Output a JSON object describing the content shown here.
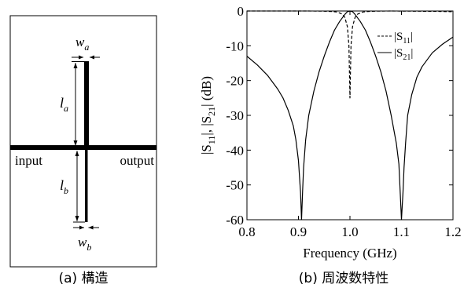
{
  "panel_a": {
    "caption": "(a) 構造",
    "label_wa_main": "w",
    "label_wa_sub": "a",
    "label_la_main": "l",
    "label_la_sub": "a",
    "label_lb_main": "l",
    "label_lb_sub": "b",
    "label_wb_main": "w",
    "label_wb_sub": "b",
    "label_input": "input",
    "label_output": "output"
  },
  "panel_b": {
    "caption": "(b) 周波数特性"
  },
  "chart_data": {
    "type": "line",
    "xlabel": "Frequency (GHz)",
    "ylabel_parts": [
      "|S",
      "11",
      "|, |S",
      "21",
      "| (dB)"
    ],
    "xlim": [
      0.8,
      1.2
    ],
    "ylim": [
      -60,
      0
    ],
    "x_ticks": [
      "0.8",
      "0.9",
      "1.0",
      "1.1",
      "1.2"
    ],
    "y_ticks": [
      "0",
      "-10",
      "-20",
      "-30",
      "-40",
      "-50",
      "-60"
    ],
    "legend_position": "top-right",
    "series": [
      {
        "name_main": "|S",
        "name_sub": "11",
        "name_end": "|",
        "style": "dashed",
        "x": [
          0.8,
          0.84,
          0.88,
          0.92,
          0.95,
          0.965,
          0.975,
          0.985,
          0.99,
          0.995,
          0.998,
          1.0,
          1.002,
          1.005,
          1.01,
          1.015,
          1.025,
          1.035,
          1.05,
          1.08,
          1.12,
          1.16,
          1.2
        ],
        "y": [
          0,
          0,
          0,
          0,
          -0.05,
          -0.15,
          -0.3,
          -0.9,
          -1.8,
          -4.5,
          -10,
          -25,
          -10,
          -4.5,
          -1.8,
          -0.9,
          -0.3,
          -0.15,
          -0.05,
          0,
          -0.05,
          -0.1,
          -0.2
        ]
      },
      {
        "name_main": "|S",
        "name_sub": "21",
        "name_end": "|",
        "style": "solid",
        "x": [
          0.8,
          0.82,
          0.84,
          0.86,
          0.87,
          0.88,
          0.89,
          0.895,
          0.9,
          0.904,
          0.906,
          0.908,
          0.91,
          0.914,
          0.92,
          0.93,
          0.94,
          0.95,
          0.96,
          0.97,
          0.98,
          0.99,
          0.995,
          1.0,
          1.005,
          1.01,
          1.02,
          1.03,
          1.04,
          1.05,
          1.06,
          1.07,
          1.08,
          1.09,
          1.095,
          1.1,
          1.103,
          1.105,
          1.108,
          1.112,
          1.12,
          1.13,
          1.14,
          1.16,
          1.18,
          1.2
        ],
        "y": [
          -13,
          -15.5,
          -18.5,
          -22.5,
          -25,
          -28.5,
          -33,
          -37,
          -43,
          -52,
          -60,
          -52,
          -45,
          -37,
          -30,
          -23,
          -17.5,
          -13,
          -9,
          -5.5,
          -3,
          -1,
          -0.2,
          0,
          -0.2,
          -1,
          -3,
          -5.5,
          -9,
          -13,
          -17.5,
          -23,
          -30,
          -38,
          -44,
          -60,
          -52,
          -45,
          -38,
          -30,
          -24,
          -19,
          -16,
          -12,
          -9.5,
          -7.5
        ]
      }
    ]
  }
}
